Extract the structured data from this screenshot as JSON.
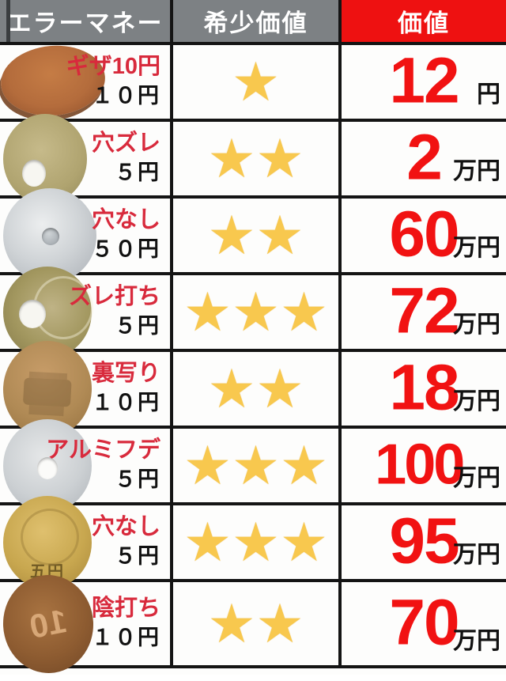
{
  "header": {
    "col1": "エラーマネー",
    "col2": "希少価値",
    "col3": "価値"
  },
  "colors": {
    "header_gray_bg": "#7d8184",
    "header_value_bg": "#ee1111",
    "error_name_red": "#d82a3c",
    "value_red": "#f11212",
    "star_yellow": "#f8c84e",
    "border_black": "#141414"
  },
  "rows": [
    {
      "error_name": "ギザ10円",
      "denomination": "１０円",
      "stars": "★",
      "star_count": 1,
      "value": "12",
      "unit": "円",
      "coin": "10円硬貨",
      "coin_mark": ""
    },
    {
      "error_name": "穴ズレ",
      "denomination": "５円",
      "stars": "★★",
      "star_count": 2,
      "value": "2",
      "unit": "万円",
      "coin": "5円硬貨",
      "coin_mark": ""
    },
    {
      "error_name": "穴なし",
      "denomination": "５０円",
      "stars": "★★",
      "star_count": 2,
      "value": "60",
      "unit": "万円",
      "coin": "50円硬貨",
      "coin_mark": ""
    },
    {
      "error_name": "ズレ打ち",
      "denomination": "５円",
      "stars": "★★★",
      "star_count": 3,
      "value": "72",
      "unit": "万円",
      "coin": "5円硬貨",
      "coin_mark": ""
    },
    {
      "error_name": "裏写り",
      "denomination": "１０円",
      "stars": "★★",
      "star_count": 2,
      "value": "18",
      "unit": "万円",
      "coin": "10円硬貨",
      "coin_mark": ""
    },
    {
      "error_name": "アルミフデ",
      "denomination": "５円",
      "stars": "★★★",
      "star_count": 3,
      "value": "100",
      "unit": "万円",
      "coin": "5円硬貨",
      "coin_mark": ""
    },
    {
      "error_name": "穴なし",
      "denomination": "５円",
      "stars": "★★★",
      "star_count": 3,
      "value": "95",
      "unit": "万円",
      "coin": "5円硬貨",
      "coin_mark": "五円"
    },
    {
      "error_name": "陰打ち",
      "denomination": "１０円",
      "stars": "★★",
      "star_count": 2,
      "value": "70",
      "unit": "万円",
      "coin": "10円硬貨",
      "coin_mark": "10"
    }
  ],
  "chart_data": {
    "type": "table",
    "columns": [
      "エラーマネー",
      "希少価値",
      "価値"
    ],
    "rows": [
      [
        "ギザ10円（１０円）",
        1,
        "12円"
      ],
      [
        "穴ズレ（５円）",
        2,
        "2万円"
      ],
      [
        "穴なし（５０円）",
        2,
        "60万円"
      ],
      [
        "ズレ打ち（５円）",
        3,
        "72万円"
      ],
      [
        "裏写り（１０円）",
        2,
        "18万円"
      ],
      [
        "アルミフデ（５円）",
        3,
        "100万円"
      ],
      [
        "穴なし（５円）",
        3,
        "95万円"
      ],
      [
        "陰打ち（１０円）",
        2,
        "70万円"
      ]
    ],
    "legend_note": "希少価値 = star rating (1-3), 価値 = value in yen / 10k-yen"
  }
}
